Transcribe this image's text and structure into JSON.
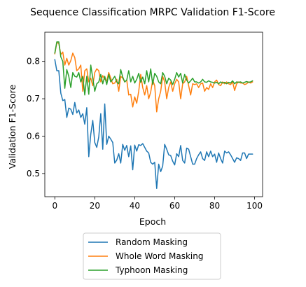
{
  "chart_data": {
    "type": "line",
    "title": "Sequence Classification MRPC Validation F1-Score",
    "xlabel": "Epoch",
    "ylabel": "Validation F1-Score",
    "xlim": [
      -5,
      104
    ],
    "ylim": [
      0.438,
      0.878
    ],
    "xticks": [
      0,
      20,
      40,
      60,
      80,
      100
    ],
    "yticks": [
      0.5,
      0.6,
      0.7,
      0.8
    ],
    "grid": false,
    "legend_position": "bottom-center",
    "series": [
      {
        "name": "Random Masking",
        "color": "#1f77b4",
        "values": [
          0.805,
          0.775,
          0.775,
          0.715,
          0.695,
          0.698,
          0.65,
          0.675,
          0.672,
          0.658,
          0.69,
          0.662,
          0.67,
          0.65,
          0.66,
          0.632,
          0.676,
          0.545,
          0.605,
          0.642,
          0.583,
          0.57,
          0.598,
          0.66,
          0.565,
          0.686,
          0.578,
          0.6,
          0.592,
          0.583,
          0.528,
          0.536,
          0.553,
          0.528,
          0.578,
          0.562,
          0.575,
          0.545,
          0.574,
          0.51,
          0.576,
          0.56,
          0.577,
          0.575,
          0.58,
          0.57,
          0.56,
          0.555,
          0.53,
          0.525,
          0.53,
          0.46,
          0.525,
          0.505,
          0.52,
          0.578,
          0.565,
          0.55,
          0.548,
          0.533,
          0.523,
          0.553,
          0.545,
          0.575,
          0.535,
          0.528,
          0.568,
          0.565,
          0.545,
          0.525,
          0.525,
          0.54,
          0.55,
          0.558,
          0.54,
          0.535,
          0.558,
          0.545,
          0.56,
          0.545,
          0.552,
          0.53,
          0.555,
          0.54,
          0.528,
          0.56,
          0.555,
          0.558,
          0.55,
          0.54,
          0.53,
          0.542,
          0.54,
          0.535,
          0.555,
          0.555,
          0.54,
          0.552,
          0.552,
          0.552
        ]
      },
      {
        "name": "Whole Word Masking",
        "color": "#ff7f0e",
        "values": [
          0.82,
          0.85,
          0.848,
          0.818,
          0.825,
          0.79,
          0.808,
          0.79,
          0.802,
          0.822,
          0.81,
          0.775,
          0.78,
          0.79,
          0.72,
          0.775,
          0.78,
          0.745,
          0.755,
          0.735,
          0.77,
          0.78,
          0.775,
          0.745,
          0.762,
          0.752,
          0.748,
          0.77,
          0.755,
          0.74,
          0.742,
          0.752,
          0.72,
          0.76,
          0.755,
          0.745,
          0.75,
          0.71,
          0.712,
          0.678,
          0.705,
          0.688,
          0.72,
          0.765,
          0.73,
          0.71,
          0.735,
          0.7,
          0.718,
          0.75,
          0.735,
          0.665,
          0.7,
          0.72,
          0.76,
          0.745,
          0.7,
          0.73,
          0.745,
          0.72,
          0.74,
          0.752,
          0.745,
          0.7,
          0.74,
          0.745,
          0.76,
          0.735,
          0.71,
          0.74,
          0.738,
          0.74,
          0.73,
          0.74,
          0.742,
          0.72,
          0.73,
          0.725,
          0.74,
          0.73,
          0.745,
          0.75,
          0.738,
          0.735,
          0.745,
          0.74,
          0.745,
          0.74,
          0.738,
          0.745,
          0.722,
          0.74,
          0.745,
          0.742,
          0.742,
          0.738,
          0.74,
          0.745,
          0.742,
          0.745
        ]
      },
      {
        "name": "Typhoon Masking",
        "color": "#2ca02c",
        "values": [
          0.822,
          0.852,
          0.852,
          0.812,
          0.8,
          0.728,
          0.778,
          0.76,
          0.73,
          0.77,
          0.76,
          0.758,
          0.77,
          0.745,
          0.76,
          0.71,
          0.76,
          0.712,
          0.79,
          0.755,
          0.72,
          0.74,
          0.745,
          0.765,
          0.74,
          0.76,
          0.738,
          0.765,
          0.745,
          0.752,
          0.76,
          0.745,
          0.74,
          0.778,
          0.758,
          0.745,
          0.75,
          0.775,
          0.745,
          0.76,
          0.742,
          0.752,
          0.768,
          0.744,
          0.758,
          0.74,
          0.775,
          0.745,
          0.78,
          0.738,
          0.768,
          0.76,
          0.745,
          0.74,
          0.77,
          0.76,
          0.74,
          0.755,
          0.75,
          0.738,
          0.752,
          0.77,
          0.758,
          0.768,
          0.742,
          0.765,
          0.75,
          0.742,
          0.748,
          0.755,
          0.745,
          0.745,
          0.742,
          0.745,
          0.752,
          0.745,
          0.744,
          0.748,
          0.745,
          0.744,
          0.742,
          0.744,
          0.74,
          0.745,
          0.742,
          0.744,
          0.74,
          0.744,
          0.742,
          0.748,
          0.74,
          0.745,
          0.744,
          0.745,
          0.742,
          0.744,
          0.746,
          0.744,
          0.745,
          0.748
        ]
      }
    ]
  }
}
